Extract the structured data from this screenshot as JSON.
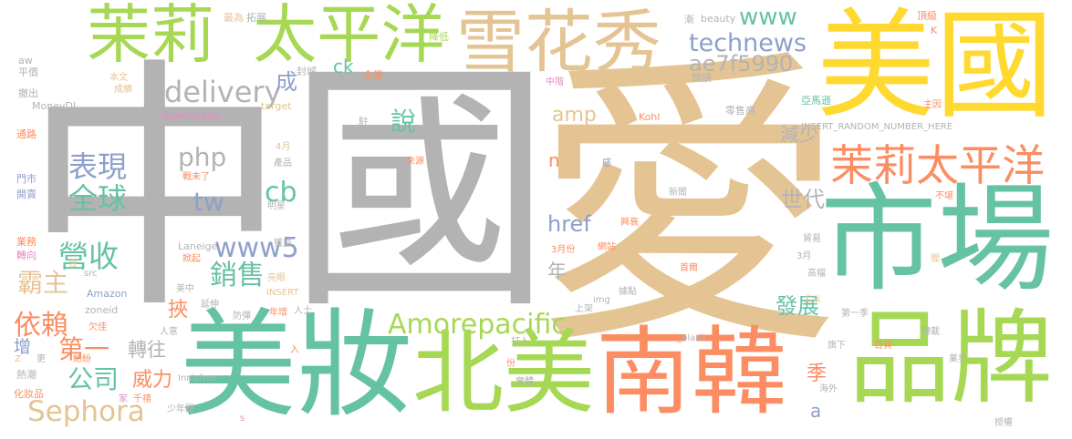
{
  "words": [
    {
      "text": "中國",
      "color": "#b3b3b3"
    },
    {
      "text": "愛",
      "color": "#e5c494"
    },
    {
      "text": "美國",
      "color": "#ffd92f"
    },
    {
      "text": "市場",
      "color": "#66c2a5"
    },
    {
      "text": "品牌",
      "color": "#a6d854"
    },
    {
      "text": "美妝",
      "color": "#66c2a5"
    },
    {
      "text": "北美",
      "color": "#a6d854"
    },
    {
      "text": "南韓",
      "color": "#fc8d62"
    },
    {
      "text": "雪花秀",
      "color": "#e5c494"
    },
    {
      "text": "茉莉 太平洋",
      "color": "#a6d854"
    },
    {
      "text": "茉莉太平洋",
      "color": "#fc8d62"
    },
    {
      "text": "delivery",
      "color": "#b3b3b3"
    },
    {
      "text": "technews",
      "color": "#8da0cb"
    },
    {
      "text": "www",
      "color": "#66c2a5"
    },
    {
      "text": "ae7f5990",
      "color": "#b3b3b3"
    },
    {
      "text": "amp",
      "color": "#e5c494"
    },
    {
      "text": "說",
      "color": "#66c2a5"
    },
    {
      "text": "成",
      "color": "#8da0cb"
    },
    {
      "text": "ck",
      "color": "#66c2a5"
    },
    {
      "text": "php",
      "color": "#b3b3b3"
    },
    {
      "text": "表現",
      "color": "#8da0cb"
    },
    {
      "text": "全球",
      "color": "#66c2a5"
    },
    {
      "text": "tw",
      "color": "#8da0cb"
    },
    {
      "text": "cb",
      "color": "#66c2a5"
    },
    {
      "text": "www5",
      "color": "#8da0cb"
    },
    {
      "text": "營收",
      "color": "#66c2a5"
    },
    {
      "text": "銷售",
      "color": "#66c2a5"
    },
    {
      "text": "霸主",
      "color": "#e5c494"
    },
    {
      "text": "依賴",
      "color": "#fc8d62"
    },
    {
      "text": "第一",
      "color": "#fc8d62"
    },
    {
      "text": "公司",
      "color": "#66c2a5"
    },
    {
      "text": "Sephora",
      "color": "#e5c494"
    },
    {
      "text": "轉往",
      "color": "#b3b3b3"
    },
    {
      "text": "威力",
      "color": "#fc8d62"
    },
    {
      "text": "挾",
      "color": "#fc8d62"
    },
    {
      "text": "Amorepacific",
      "color": "#a6d854"
    },
    {
      "text": "發展",
      "color": "#66c2a5"
    },
    {
      "text": "減少",
      "color": "#b3b3b3"
    },
    {
      "text": "世代",
      "color": "#b3b3b3"
    },
    {
      "text": "年",
      "color": "#b3b3b3"
    },
    {
      "text": "href",
      "color": "#8da0cb"
    },
    {
      "text": "n",
      "color": "#fc8d62"
    },
    {
      "text": "季",
      "color": "#fc8d62"
    },
    {
      "text": "a",
      "color": "#8da0cb"
    },
    {
      "text": "增",
      "color": "#8da0cb"
    },
    {
      "text": "最為",
      "color": "#e5c494"
    },
    {
      "text": "拓展",
      "color": "#b3b3b3"
    },
    {
      "text": "降低",
      "color": "#a6d854"
    },
    {
      "text": "封城",
      "color": "#b3b3b3"
    },
    {
      "text": "企業",
      "color": "#fc8d62"
    },
    {
      "text": "漸",
      "color": "#b3b3b3"
    },
    {
      "text": "beauty",
      "color": "#b3b3b3"
    },
    {
      "text": "頂級",
      "color": "#fc8d62"
    },
    {
      "text": "K",
      "color": "#fc8d62"
    },
    {
      "text": "aw",
      "color": "#b3b3b3"
    },
    {
      "text": "平價",
      "color": "#b3b3b3"
    },
    {
      "text": "本文",
      "color": "#e5c494"
    },
    {
      "text": "成績",
      "color": "#e5c494"
    },
    {
      "text": "撤出",
      "color": "#b3b3b3"
    },
    {
      "text": "MoneyDJ",
      "color": "#b3b3b3"
    },
    {
      "text": "BTS",
      "color": "#b3b3b3"
    },
    {
      "text": "Sulwhasoo",
      "color": "#e78ac3"
    },
    {
      "text": "target",
      "color": "#e5c494"
    },
    {
      "text": "中階",
      "color": "#e78ac3"
    },
    {
      "text": "閱讀",
      "color": "#b3b3b3"
    },
    {
      "text": "亞馬遜",
      "color": "#66c2a5"
    },
    {
      "text": "主因",
      "color": "#fc8d62"
    },
    {
      "text": "零售商",
      "color": "#b3b3b3"
    },
    {
      "text": "Kohl",
      "color": "#fc8d62"
    },
    {
      "text": "駐",
      "color": "#b3b3b3"
    },
    {
      "text": "INSERT_RANDOM_NUMBER_HERE",
      "color": "#b3b3b3"
    },
    {
      "text": "通路",
      "color": "#fc8d62"
    },
    {
      "text": "4月",
      "color": "#e5c494"
    },
    {
      "text": "產品",
      "color": "#b3b3b3"
    },
    {
      "text": "來源",
      "color": "#fc8d62"
    },
    {
      "text": "感",
      "color": "#8da0cb"
    },
    {
      "text": "戰未了",
      "color": "#fc8d62"
    },
    {
      "text": "門市",
      "color": "#8da0cb"
    },
    {
      "text": "開賣",
      "color": "#8da0cb"
    },
    {
      "text": "明星",
      "color": "#b3b3b3"
    },
    {
      "text": "新聞",
      "color": "#b3b3b3"
    },
    {
      "text": "不堪",
      "color": "#fc8d62"
    },
    {
      "text": "興衰",
      "color": "#fc8d62"
    },
    {
      "text": "業務",
      "color": "#fc8d62"
    },
    {
      "text": "轉向",
      "color": "#e78ac3"
    },
    {
      "text": "Laneige",
      "color": "#b3b3b3"
    },
    {
      "text": "獲益",
      "color": "#b3b3b3"
    },
    {
      "text": "貿易",
      "color": "#b3b3b3"
    },
    {
      "text": "網站",
      "color": "#fc8d62"
    },
    {
      "text": "3月份",
      "color": "#fc8d62"
    },
    {
      "text": "掀起",
      "color": "#fc8d62"
    },
    {
      "text": "3月",
      "color": "#b3b3b3"
    },
    {
      "text": "首爾",
      "color": "#fc8d62"
    },
    {
      "text": "聞",
      "color": "#e5c494"
    },
    {
      "text": "佳",
      "color": "#e5c494"
    },
    {
      "text": "src",
      "color": "#b3b3b3"
    },
    {
      "text": "亮眼",
      "color": "#e5c494"
    },
    {
      "text": "高檔",
      "color": "#b3b3b3"
    },
    {
      "text": "美中",
      "color": "#b3b3b3"
    },
    {
      "text": "INSERT",
      "color": "#e5c494"
    },
    {
      "text": "據點",
      "color": "#b3b3b3"
    },
    {
      "text": "占",
      "color": "#b3b3b3"
    },
    {
      "text": "聖地",
      "color": "#b3b3b3"
    },
    {
      "text": "Amazon",
      "color": "#8da0cb"
    },
    {
      "text": "延伸",
      "color": "#b3b3b3"
    },
    {
      "text": "img",
      "color": "#b3b3b3"
    },
    {
      "text": "尤以",
      "color": "#e5c494"
    },
    {
      "text": "上架",
      "color": "#b3b3b3"
    },
    {
      "text": "zoneid",
      "color": "#b3b3b3"
    },
    {
      "text": "防彈",
      "color": "#b3b3b3"
    },
    {
      "text": "年增",
      "color": "#fc8d62"
    },
    {
      "text": "人士",
      "color": "#b3b3b3"
    },
    {
      "text": "欠佳",
      "color": "#fc8d62"
    },
    {
      "text": "人意",
      "color": "#b3b3b3"
    },
    {
      "text": "第一季",
      "color": "#b3b3b3"
    },
    {
      "text": "打入",
      "color": "#b3b3b3"
    },
    {
      "text": "_blank",
      "color": "#b3b3b3"
    },
    {
      "text": "旗下",
      "color": "#b3b3b3"
    },
    {
      "text": "百貨",
      "color": "#fc8d62"
    },
    {
      "text": "轉載",
      "color": "#b3b3b3"
    },
    {
      "text": "入",
      "color": "#fc8d62"
    },
    {
      "text": "更",
      "color": "#b3b3b3"
    },
    {
      "text": "Z",
      "color": "#e5c494"
    },
    {
      "text": "紛紛",
      "color": "#fc8d62"
    },
    {
      "text": "份",
      "color": "#fc8d62"
    },
    {
      "text": "業界",
      "color": "#b3b3b3"
    },
    {
      "text": "海外",
      "color": "#b3b3b3"
    },
    {
      "text": "熱潮",
      "color": "#b3b3b3"
    },
    {
      "text": "家",
      "color": "#e78ac3"
    },
    {
      "text": "千禧",
      "color": "#fc8d62"
    },
    {
      "text": "實體",
      "color": "#b3b3b3"
    },
    {
      "text": "Innisfree",
      "color": "#b3b3b3"
    },
    {
      "text": "化妝品",
      "color": "#fc8d62"
    },
    {
      "text": "少年團",
      "color": "#b3b3b3"
    },
    {
      "text": "s",
      "color": "#e78ac3"
    },
    {
      "text": "授權",
      "color": "#b3b3b3"
    }
  ]
}
